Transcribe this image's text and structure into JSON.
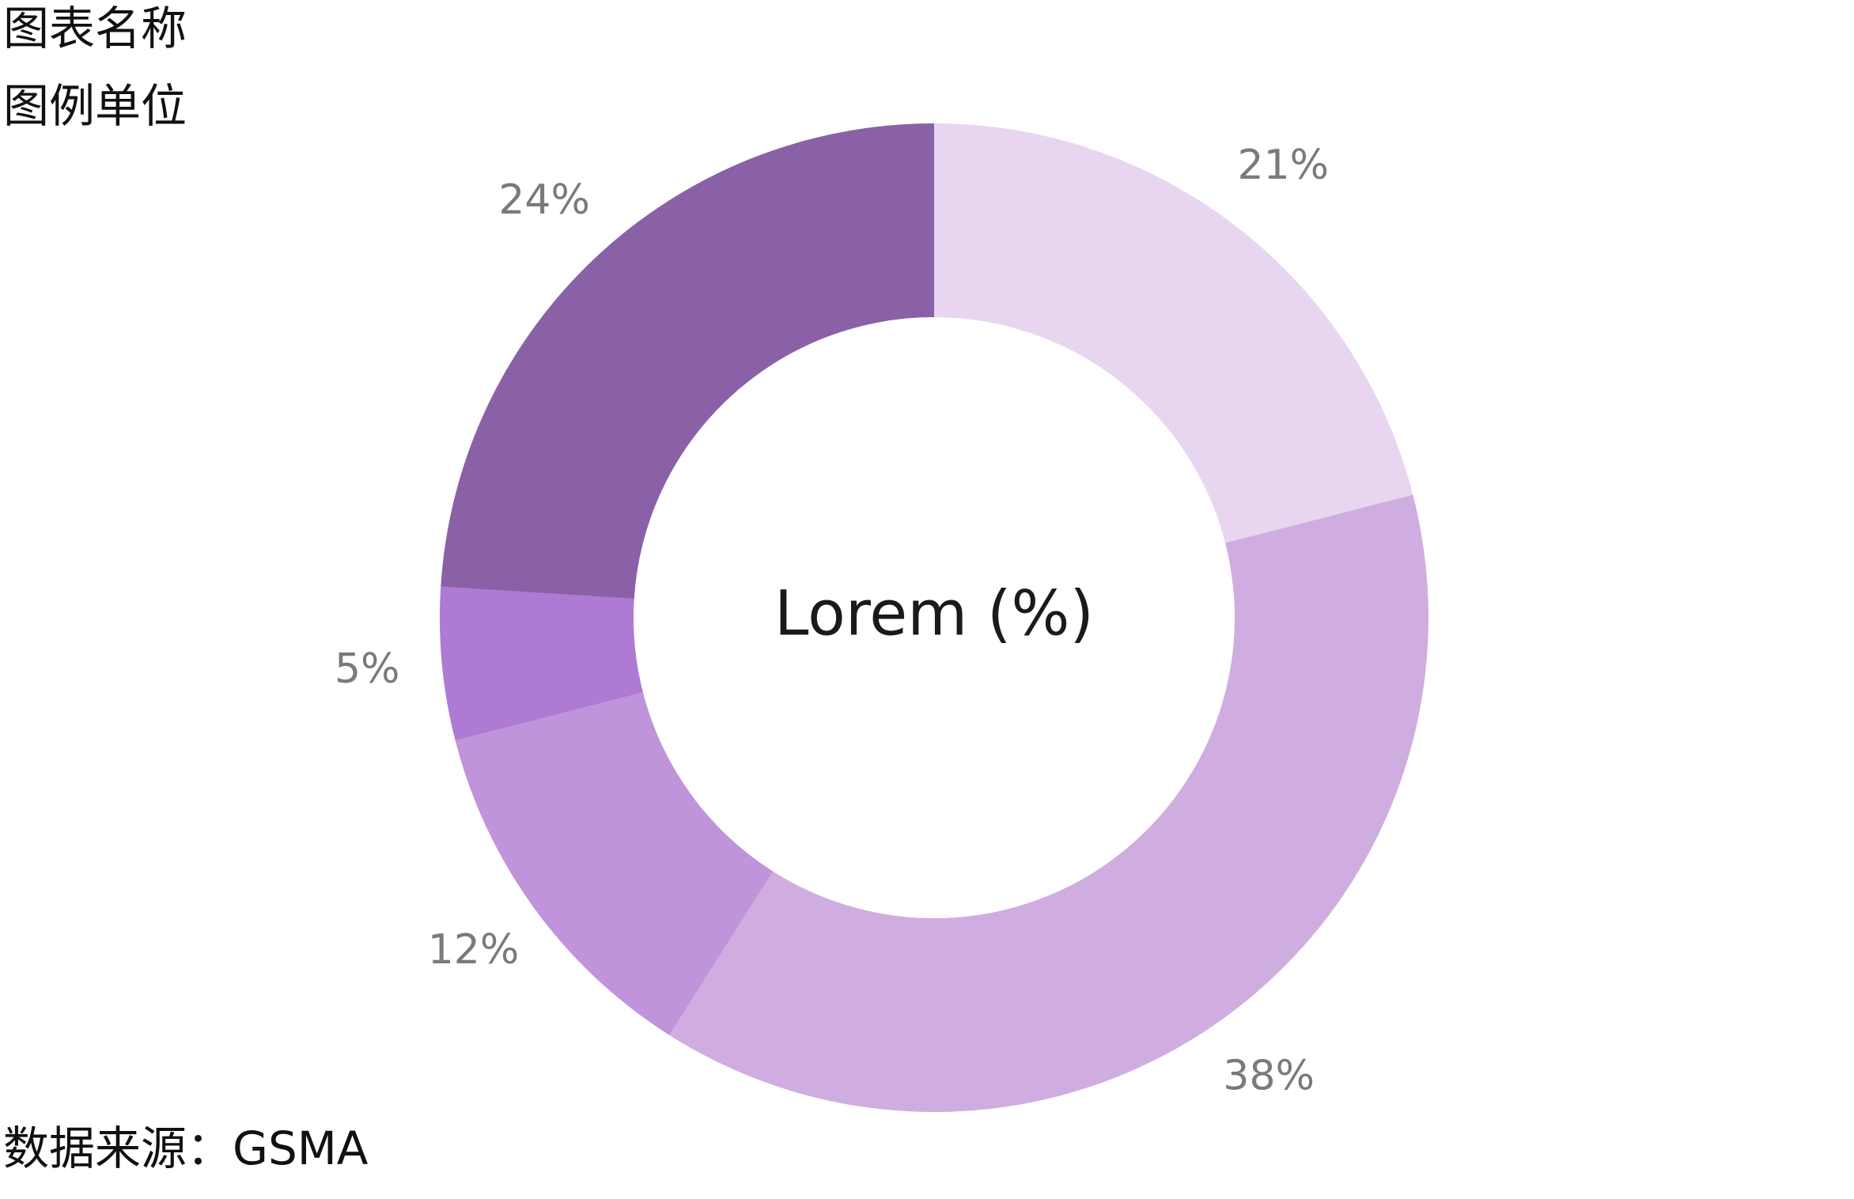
{
  "title": "图表名称",
  "unit_label": "图例单位",
  "source_label": "数据来源：GSMA",
  "chart_data": {
    "type": "pie",
    "variant": "donut",
    "center_label": "Lorem (%)",
    "start_angle_deg": 0,
    "direction": "clockwise",
    "slices": [
      {
        "label": "21%",
        "value": 21,
        "color": "#e8d6f1"
      },
      {
        "label": "38%",
        "value": 38,
        "color": "#cfade1"
      },
      {
        "label": "12%",
        "value": 12,
        "color": "#bf94da"
      },
      {
        "label": "5%",
        "value": 5,
        "color": "#ae7ad3"
      },
      {
        "label": "24%",
        "value": 24,
        "color": "#8a61a7"
      }
    ]
  }
}
